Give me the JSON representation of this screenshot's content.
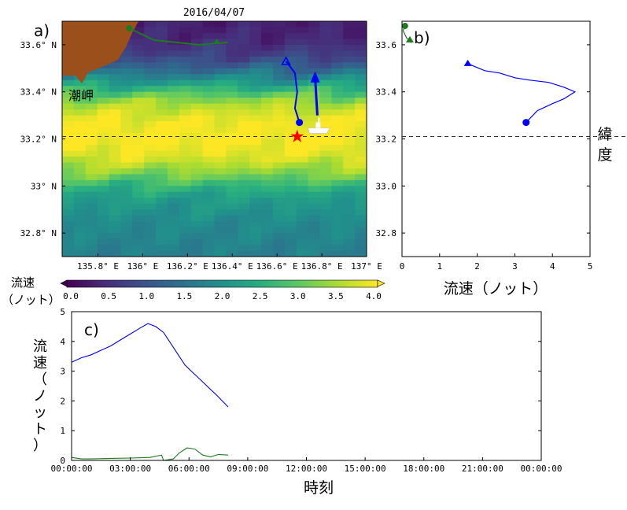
{
  "chart_data": [
    {
      "panel": "a)",
      "type": "heatmap",
      "title": "2016/04/07",
      "x_ticks": [
        "135.8° E",
        "136°  E",
        "136.2° E",
        "136.4° E",
        "136.6° E",
        "136.8° E",
        "137° E"
      ],
      "x_tick_values": [
        135.8,
        136.0,
        136.2,
        136.4,
        136.6,
        136.8,
        137.0
      ],
      "y_ticks": [
        "33.6° N",
        "33.4° N",
        "33.2° N",
        "33°  N",
        "32.8° N"
      ],
      "y_tick_values": [
        33.6,
        33.4,
        33.2,
        33.0,
        32.8
      ],
      "xlim": [
        135.64,
        137.0
      ],
      "ylim": [
        32.7,
        33.7
      ],
      "land_label": "潮岬",
      "reference_latitude": 33.21,
      "colorbar": {
        "label": "流速\n（ノット）",
        "ticks": [
          "0.0",
          "0.5",
          "1.0",
          "1.5",
          "2.0",
          "2.5",
          "3.0",
          "3.5",
          "4.0"
        ],
        "range": [
          0,
          4
        ],
        "colormap": [
          "#440154",
          "#472d7b",
          "#3b528b",
          "#2c728e",
          "#21918c",
          "#28ae80",
          "#5ec962",
          "#addc30",
          "#fde725"
        ]
      },
      "speed_profile_by_latitude": [
        {
          "lat": 33.7,
          "speed": 0.35
        },
        {
          "lat": 33.62,
          "speed": 0.45
        },
        {
          "lat": 33.55,
          "speed": 0.8
        },
        {
          "lat": 33.5,
          "speed": 1.3
        },
        {
          "lat": 33.45,
          "speed": 2.0
        },
        {
          "lat": 33.4,
          "speed": 2.8
        },
        {
          "lat": 33.35,
          "speed": 3.5
        },
        {
          "lat": 33.28,
          "speed": 3.9
        },
        {
          "lat": 33.2,
          "speed": 4.0
        },
        {
          "lat": 33.12,
          "speed": 3.8
        },
        {
          "lat": 33.05,
          "speed": 3.2
        },
        {
          "lat": 33.0,
          "speed": 2.6
        },
        {
          "lat": 32.95,
          "speed": 2.2
        },
        {
          "lat": 32.85,
          "speed": 1.9
        },
        {
          "lat": 32.7,
          "speed": 1.7
        }
      ],
      "tracks": [
        {
          "color": "#1f7a1f",
          "points": [
            [
              135.94,
              33.67
            ],
            [
              136.05,
              33.62
            ],
            [
              136.25,
              33.6
            ],
            [
              136.38,
              33.61
            ]
          ]
        },
        {
          "color": "#0000ff",
          "points": [
            [
              136.64,
              33.53
            ],
            [
              136.68,
              33.48
            ],
            [
              136.69,
              33.4
            ],
            [
              136.68,
              33.33
            ],
            [
              136.7,
              33.27
            ]
          ]
        },
        {
          "color": "#0000ff",
          "arrow": true,
          "points": [
            [
              136.78,
              33.3
            ],
            [
              136.77,
              33.46
            ]
          ]
        }
      ],
      "star": {
        "lon": 136.69,
        "lat": 33.21,
        "color": "#ff0000"
      },
      "ship": {
        "lon": 136.78,
        "lat": 33.24
      }
    },
    {
      "panel": "b)",
      "type": "line",
      "xlabel": "流速（ノット）",
      "ylabel": "緯\n度",
      "xlim": [
        0,
        5
      ],
      "ylim": [
        32.7,
        33.7
      ],
      "x_ticks": [
        "0",
        "1",
        "2",
        "3",
        "4",
        "5"
      ],
      "y_ticks": [
        "33.6",
        "33.4",
        "33.2",
        "33.0",
        "32.8"
      ],
      "reference_latitude": 33.21,
      "series": [
        {
          "color": "#0000ff",
          "points": [
            [
              1.75,
              33.52
            ],
            [
              2.2,
              33.49
            ],
            [
              2.6,
              33.48
            ],
            [
              3.0,
              33.46
            ],
            [
              3.4,
              33.45
            ],
            [
              3.9,
              33.44
            ],
            [
              4.3,
              33.42
            ],
            [
              4.6,
              33.4
            ],
            [
              4.3,
              33.37
            ],
            [
              4.0,
              33.35
            ],
            [
              3.6,
              33.32
            ],
            [
              3.3,
              33.27
            ]
          ]
        },
        {
          "color": "#1f7a1f",
          "points": [
            [
              0.08,
              33.68
            ],
            [
              0.03,
              33.66
            ],
            [
              0.12,
              33.63
            ],
            [
              0.25,
              33.61
            ],
            [
              0.15,
              33.615
            ]
          ]
        }
      ]
    },
    {
      "panel": "c)",
      "type": "line",
      "xlabel": "時刻",
      "ylabel": "流\n速\n（\nノ\nッ\nト\n）",
      "xlim": [
        0,
        24
      ],
      "ylim": [
        0,
        5
      ],
      "x_ticks": [
        "00:00:00",
        "03:00:00",
        "06:00:00",
        "09:00:00",
        "12:00:00",
        "15:00:00",
        "18:00:00",
        "21:00:00",
        "00:00:00"
      ],
      "y_ticks": [
        "0",
        "1",
        "2",
        "3",
        "4",
        "5"
      ],
      "series": [
        {
          "color": "#0000ff",
          "points": [
            [
              0,
              3.3
            ],
            [
              0.5,
              3.45
            ],
            [
              1.0,
              3.55
            ],
            [
              1.5,
              3.7
            ],
            [
              2.0,
              3.85
            ],
            [
              2.5,
              4.05
            ],
            [
              3.0,
              4.25
            ],
            [
              3.5,
              4.45
            ],
            [
              3.9,
              4.6
            ],
            [
              4.3,
              4.5
            ],
            [
              4.7,
              4.3
            ],
            [
              5.0,
              4.0
            ],
            [
              5.4,
              3.6
            ],
            [
              5.8,
              3.2
            ],
            [
              6.2,
              2.95
            ],
            [
              6.6,
              2.7
            ],
            [
              7.0,
              2.45
            ],
            [
              7.4,
              2.2
            ],
            [
              7.7,
              2.0
            ],
            [
              8.0,
              1.8
            ]
          ]
        },
        {
          "color": "#1f7a1f",
          "points": [
            [
              0,
              0.1
            ],
            [
              0.5,
              0.05
            ],
            [
              1.0,
              0.05
            ],
            [
              2.0,
              0.07
            ],
            [
              3.0,
              0.08
            ],
            [
              4.0,
              0.1
            ],
            [
              4.6,
              0.18
            ],
            [
              4.7,
              0.0
            ],
            [
              5.2,
              0.05
            ],
            [
              5.5,
              0.25
            ],
            [
              5.9,
              0.42
            ],
            [
              6.3,
              0.38
            ],
            [
              6.7,
              0.18
            ],
            [
              7.1,
              0.12
            ],
            [
              7.5,
              0.2
            ],
            [
              8.0,
              0.18
            ]
          ]
        }
      ]
    }
  ]
}
